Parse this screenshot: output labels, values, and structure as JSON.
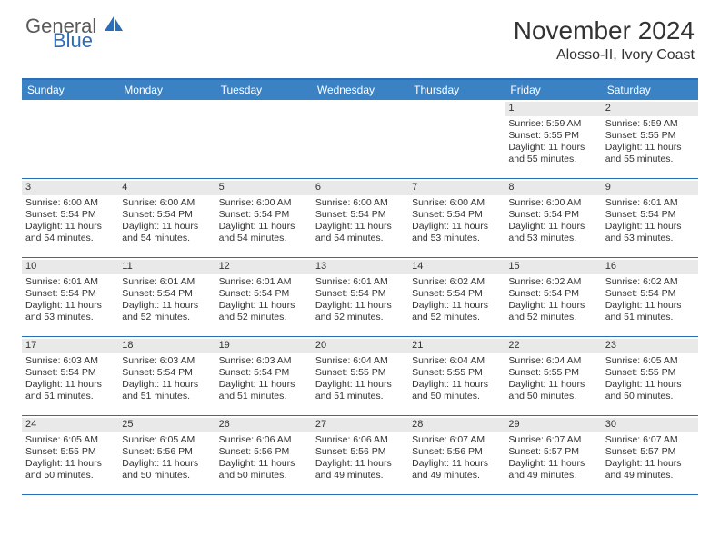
{
  "logo": {
    "general": "General",
    "blue": "Blue"
  },
  "title": "November 2024",
  "location": "Alosso-II, Ivory Coast",
  "colors": {
    "header_bg": "#3b82c4",
    "border": "#2a6db8",
    "daynum_bg": "#e9e9e9",
    "text": "#333333",
    "logo_gray": "#5a5a5a",
    "logo_blue": "#2a6db8",
    "background": "#ffffff"
  },
  "typography": {
    "title_fontsize": 28,
    "location_fontsize": 16,
    "dayheader_fontsize": 12,
    "cell_fontsize": 10.5
  },
  "dayHeaders": [
    "Sunday",
    "Monday",
    "Tuesday",
    "Wednesday",
    "Thursday",
    "Friday",
    "Saturday"
  ],
  "weeks": [
    [
      {
        "empty": true
      },
      {
        "empty": true
      },
      {
        "empty": true
      },
      {
        "empty": true
      },
      {
        "empty": true
      },
      {
        "num": "1",
        "sunrise": "Sunrise: 5:59 AM",
        "sunset": "Sunset: 5:55 PM",
        "daylight1": "Daylight: 11 hours",
        "daylight2": "and 55 minutes."
      },
      {
        "num": "2",
        "sunrise": "Sunrise: 5:59 AM",
        "sunset": "Sunset: 5:55 PM",
        "daylight1": "Daylight: 11 hours",
        "daylight2": "and 55 minutes."
      }
    ],
    [
      {
        "num": "3",
        "sunrise": "Sunrise: 6:00 AM",
        "sunset": "Sunset: 5:54 PM",
        "daylight1": "Daylight: 11 hours",
        "daylight2": "and 54 minutes."
      },
      {
        "num": "4",
        "sunrise": "Sunrise: 6:00 AM",
        "sunset": "Sunset: 5:54 PM",
        "daylight1": "Daylight: 11 hours",
        "daylight2": "and 54 minutes."
      },
      {
        "num": "5",
        "sunrise": "Sunrise: 6:00 AM",
        "sunset": "Sunset: 5:54 PM",
        "daylight1": "Daylight: 11 hours",
        "daylight2": "and 54 minutes."
      },
      {
        "num": "6",
        "sunrise": "Sunrise: 6:00 AM",
        "sunset": "Sunset: 5:54 PM",
        "daylight1": "Daylight: 11 hours",
        "daylight2": "and 54 minutes."
      },
      {
        "num": "7",
        "sunrise": "Sunrise: 6:00 AM",
        "sunset": "Sunset: 5:54 PM",
        "daylight1": "Daylight: 11 hours",
        "daylight2": "and 53 minutes."
      },
      {
        "num": "8",
        "sunrise": "Sunrise: 6:00 AM",
        "sunset": "Sunset: 5:54 PM",
        "daylight1": "Daylight: 11 hours",
        "daylight2": "and 53 minutes."
      },
      {
        "num": "9",
        "sunrise": "Sunrise: 6:01 AM",
        "sunset": "Sunset: 5:54 PM",
        "daylight1": "Daylight: 11 hours",
        "daylight2": "and 53 minutes."
      }
    ],
    [
      {
        "num": "10",
        "sunrise": "Sunrise: 6:01 AM",
        "sunset": "Sunset: 5:54 PM",
        "daylight1": "Daylight: 11 hours",
        "daylight2": "and 53 minutes."
      },
      {
        "num": "11",
        "sunrise": "Sunrise: 6:01 AM",
        "sunset": "Sunset: 5:54 PM",
        "daylight1": "Daylight: 11 hours",
        "daylight2": "and 52 minutes."
      },
      {
        "num": "12",
        "sunrise": "Sunrise: 6:01 AM",
        "sunset": "Sunset: 5:54 PM",
        "daylight1": "Daylight: 11 hours",
        "daylight2": "and 52 minutes."
      },
      {
        "num": "13",
        "sunrise": "Sunrise: 6:01 AM",
        "sunset": "Sunset: 5:54 PM",
        "daylight1": "Daylight: 11 hours",
        "daylight2": "and 52 minutes."
      },
      {
        "num": "14",
        "sunrise": "Sunrise: 6:02 AM",
        "sunset": "Sunset: 5:54 PM",
        "daylight1": "Daylight: 11 hours",
        "daylight2": "and 52 minutes."
      },
      {
        "num": "15",
        "sunrise": "Sunrise: 6:02 AM",
        "sunset": "Sunset: 5:54 PM",
        "daylight1": "Daylight: 11 hours",
        "daylight2": "and 52 minutes."
      },
      {
        "num": "16",
        "sunrise": "Sunrise: 6:02 AM",
        "sunset": "Sunset: 5:54 PM",
        "daylight1": "Daylight: 11 hours",
        "daylight2": "and 51 minutes."
      }
    ],
    [
      {
        "num": "17",
        "sunrise": "Sunrise: 6:03 AM",
        "sunset": "Sunset: 5:54 PM",
        "daylight1": "Daylight: 11 hours",
        "daylight2": "and 51 minutes."
      },
      {
        "num": "18",
        "sunrise": "Sunrise: 6:03 AM",
        "sunset": "Sunset: 5:54 PM",
        "daylight1": "Daylight: 11 hours",
        "daylight2": "and 51 minutes."
      },
      {
        "num": "19",
        "sunrise": "Sunrise: 6:03 AM",
        "sunset": "Sunset: 5:54 PM",
        "daylight1": "Daylight: 11 hours",
        "daylight2": "and 51 minutes."
      },
      {
        "num": "20",
        "sunrise": "Sunrise: 6:04 AM",
        "sunset": "Sunset: 5:55 PM",
        "daylight1": "Daylight: 11 hours",
        "daylight2": "and 51 minutes."
      },
      {
        "num": "21",
        "sunrise": "Sunrise: 6:04 AM",
        "sunset": "Sunset: 5:55 PM",
        "daylight1": "Daylight: 11 hours",
        "daylight2": "and 50 minutes."
      },
      {
        "num": "22",
        "sunrise": "Sunrise: 6:04 AM",
        "sunset": "Sunset: 5:55 PM",
        "daylight1": "Daylight: 11 hours",
        "daylight2": "and 50 minutes."
      },
      {
        "num": "23",
        "sunrise": "Sunrise: 6:05 AM",
        "sunset": "Sunset: 5:55 PM",
        "daylight1": "Daylight: 11 hours",
        "daylight2": "and 50 minutes."
      }
    ],
    [
      {
        "num": "24",
        "sunrise": "Sunrise: 6:05 AM",
        "sunset": "Sunset: 5:55 PM",
        "daylight1": "Daylight: 11 hours",
        "daylight2": "and 50 minutes."
      },
      {
        "num": "25",
        "sunrise": "Sunrise: 6:05 AM",
        "sunset": "Sunset: 5:56 PM",
        "daylight1": "Daylight: 11 hours",
        "daylight2": "and 50 minutes."
      },
      {
        "num": "26",
        "sunrise": "Sunrise: 6:06 AM",
        "sunset": "Sunset: 5:56 PM",
        "daylight1": "Daylight: 11 hours",
        "daylight2": "and 50 minutes."
      },
      {
        "num": "27",
        "sunrise": "Sunrise: 6:06 AM",
        "sunset": "Sunset: 5:56 PM",
        "daylight1": "Daylight: 11 hours",
        "daylight2": "and 49 minutes."
      },
      {
        "num": "28",
        "sunrise": "Sunrise: 6:07 AM",
        "sunset": "Sunset: 5:56 PM",
        "daylight1": "Daylight: 11 hours",
        "daylight2": "and 49 minutes."
      },
      {
        "num": "29",
        "sunrise": "Sunrise: 6:07 AM",
        "sunset": "Sunset: 5:57 PM",
        "daylight1": "Daylight: 11 hours",
        "daylight2": "and 49 minutes."
      },
      {
        "num": "30",
        "sunrise": "Sunrise: 6:07 AM",
        "sunset": "Sunset: 5:57 PM",
        "daylight1": "Daylight: 11 hours",
        "daylight2": "and 49 minutes."
      }
    ]
  ]
}
